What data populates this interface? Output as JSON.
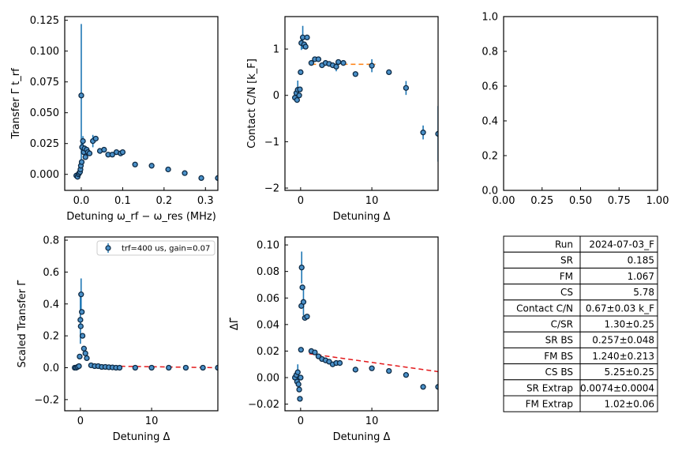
{
  "colors": {
    "marker_face": "#4a90c8",
    "marker_edge": "#0d2a45",
    "errorbar": "#1f77b4",
    "orange_fit": "#ff7f0e",
    "red_fit": "#e41a1c"
  },
  "chart_data": [
    {
      "id": "transfer",
      "type": "scatter",
      "xlabel": "Detuning ω_rf − ω_res (MHz)",
      "ylabel": "Transfer Γ t_rf",
      "xlim": [
        -0.04,
        0.33
      ],
      "ylim": [
        -0.013,
        0.128
      ],
      "xticks": [
        0,
        0.1,
        0.2,
        0.3
      ],
      "xtick_labels": [
        "0.0",
        "0.1",
        "0.2",
        "0.3"
      ],
      "yticks": [
        0,
        0.025,
        0.05,
        0.075,
        0.1,
        0.125
      ],
      "ytick_labels": [
        "0.000",
        "0.025",
        "0.050",
        "0.075",
        "0.100",
        "0.125"
      ],
      "points": [
        {
          "x": -0.012,
          "y": -0.001
        },
        {
          "x": -0.009,
          "y": -0.002
        },
        {
          "x": -0.007,
          "y": 0.0
        },
        {
          "x": -0.005,
          "y": 0.001
        },
        {
          "x": -0.003,
          "y": 0.002
        },
        {
          "x": -0.002,
          "y": 0.004
        },
        {
          "x": -0.001,
          "y": 0.007
        },
        {
          "x": 0.0,
          "y": 0.064,
          "err": 0.058
        },
        {
          "x": 0.001,
          "y": 0.01
        },
        {
          "x": 0.002,
          "y": 0.022,
          "err": 0.005
        },
        {
          "x": 0.004,
          "y": 0.027,
          "err": 0.004
        },
        {
          "x": 0.006,
          "y": 0.018
        },
        {
          "x": 0.008,
          "y": 0.021
        },
        {
          "x": 0.01,
          "y": 0.014
        },
        {
          "x": 0.013,
          "y": 0.02
        },
        {
          "x": 0.016,
          "y": 0.018
        },
        {
          "x": 0.02,
          "y": 0.017
        },
        {
          "x": 0.028,
          "y": 0.027,
          "err": 0.005
        },
        {
          "x": 0.035,
          "y": 0.029
        },
        {
          "x": 0.045,
          "y": 0.019
        },
        {
          "x": 0.055,
          "y": 0.02
        },
        {
          "x": 0.065,
          "y": 0.016
        },
        {
          "x": 0.075,
          "y": 0.016
        },
        {
          "x": 0.085,
          "y": 0.018
        },
        {
          "x": 0.095,
          "y": 0.017
        },
        {
          "x": 0.1,
          "y": 0.018
        },
        {
          "x": 0.13,
          "y": 0.008
        },
        {
          "x": 0.17,
          "y": 0.007
        },
        {
          "x": 0.21,
          "y": 0.004
        },
        {
          "x": 0.25,
          "y": 0.001
        },
        {
          "x": 0.29,
          "y": -0.003
        },
        {
          "x": 0.33,
          "y": -0.003
        }
      ]
    },
    {
      "id": "contact",
      "type": "scatter",
      "xlabel": "Detuning Δ",
      "ylabel": "Contact C/N [k_F]",
      "xlim": [
        -2.2,
        19.3
      ],
      "ylim": [
        -2.05,
        1.7
      ],
      "xticks": [
        0,
        10
      ],
      "xtick_labels": [
        "0",
        "10"
      ],
      "yticks": [
        -2,
        -1,
        0,
        1
      ],
      "ytick_labels": [
        "−2",
        "−1",
        "0",
        "1"
      ],
      "fit_line": {
        "x": [
          1.5,
          10.5
        ],
        "y": [
          0.67,
          0.67
        ],
        "style": "dashed",
        "color": "#ff7f0e"
      },
      "points": [
        {
          "x": -0.8,
          "y": -0.05
        },
        {
          "x": -0.6,
          "y": 0.05
        },
        {
          "x": -0.5,
          "y": -0.1
        },
        {
          "x": -0.4,
          "y": 0.12,
          "err": 0.2
        },
        {
          "x": -0.2,
          "y": 0.0
        },
        {
          "x": -0.1,
          "y": 0.13
        },
        {
          "x": 0.0,
          "y": 0.5
        },
        {
          "x": 0.1,
          "y": 1.13,
          "err": 0.15
        },
        {
          "x": 0.3,
          "y": 1.25,
          "err": 0.25
        },
        {
          "x": 0.5,
          "y": 1.1
        },
        {
          "x": 0.7,
          "y": 1.05
        },
        {
          "x": 0.9,
          "y": 1.25
        },
        {
          "x": 1.5,
          "y": 0.7
        },
        {
          "x": 2.0,
          "y": 0.78
        },
        {
          "x": 2.5,
          "y": 0.78
        },
        {
          "x": 3.0,
          "y": 0.65
        },
        {
          "x": 3.5,
          "y": 0.7
        },
        {
          "x": 4.0,
          "y": 0.68
        },
        {
          "x": 4.5,
          "y": 0.65
        },
        {
          "x": 5.0,
          "y": 0.62,
          "err": 0.1
        },
        {
          "x": 5.3,
          "y": 0.72
        },
        {
          "x": 6.0,
          "y": 0.7
        },
        {
          "x": 7.7,
          "y": 0.46
        },
        {
          "x": 10.0,
          "y": 0.64,
          "err": 0.14
        },
        {
          "x": 12.4,
          "y": 0.5
        },
        {
          "x": 14.8,
          "y": 0.16,
          "err": 0.15
        },
        {
          "x": 17.2,
          "y": -0.8,
          "err": 0.15
        },
        {
          "x": 19.3,
          "y": -0.83,
          "err": 0.6
        }
      ]
    },
    {
      "id": "empty",
      "type": "scatter",
      "xlim": [
        0,
        1
      ],
      "ylim": [
        0,
        1
      ],
      "xticks": [
        0,
        0.25,
        0.5,
        0.75,
        1.0
      ],
      "xtick_labels": [
        "0.00",
        "0.25",
        "0.50",
        "0.75",
        "1.00"
      ],
      "yticks": [
        0,
        0.2,
        0.4,
        0.6,
        0.8,
        1.0
      ],
      "ytick_labels": [
        "0.0",
        "0.2",
        "0.4",
        "0.6",
        "0.8",
        "1.0"
      ],
      "points": []
    },
    {
      "id": "scaled",
      "type": "scatter",
      "xlabel": "Detuning Δ",
      "ylabel": "Scaled Transfer Γ̃",
      "xlim": [
        -2.2,
        19.3
      ],
      "ylim": [
        -0.27,
        0.82
      ],
      "xticks": [
        0,
        10
      ],
      "xtick_labels": [
        "0",
        "10"
      ],
      "yticks": [
        -0.2,
        0,
        0.2,
        0.4,
        0.6,
        0.8
      ],
      "ytick_labels": [
        "−0.2",
        "0.0",
        "0.2",
        "0.4",
        "0.6",
        "0.8"
      ],
      "legend": "trf=400 us, gain=0.07",
      "fit_line": {
        "x": [
          1.2,
          19.3
        ],
        "y": [
          0.012,
          0.0
        ],
        "style": "dashed",
        "color": "#e41a1c"
      },
      "points": [
        {
          "x": -0.8,
          "y": 0.0
        },
        {
          "x": -0.6,
          "y": 0.0
        },
        {
          "x": -0.4,
          "y": 0.005
        },
        {
          "x": -0.2,
          "y": 0.01
        },
        {
          "x": -0.1,
          "y": 0.07
        },
        {
          "x": 0.0,
          "y": 0.3,
          "err": 0.15
        },
        {
          "x": 0.05,
          "y": 0.26
        },
        {
          "x": 0.1,
          "y": 0.46,
          "err": 0.1
        },
        {
          "x": 0.2,
          "y": 0.35
        },
        {
          "x": 0.3,
          "y": 0.2
        },
        {
          "x": 0.5,
          "y": 0.12
        },
        {
          "x": 0.7,
          "y": 0.09
        },
        {
          "x": 0.9,
          "y": 0.06
        },
        {
          "x": 1.5,
          "y": 0.015
        },
        {
          "x": 2.0,
          "y": 0.01
        },
        {
          "x": 2.5,
          "y": 0.01
        },
        {
          "x": 3.0,
          "y": 0.005
        },
        {
          "x": 3.5,
          "y": 0.005
        },
        {
          "x": 4.0,
          "y": 0.003
        },
        {
          "x": 4.5,
          "y": 0.002
        },
        {
          "x": 5.0,
          "y": 0.0
        },
        {
          "x": 5.5,
          "y": 0.0
        },
        {
          "x": 7.7,
          "y": 0.0
        },
        {
          "x": 10.0,
          "y": 0.0
        },
        {
          "x": 12.4,
          "y": 0.0
        },
        {
          "x": 14.8,
          "y": 0.0
        },
        {
          "x": 17.2,
          "y": 0.0
        },
        {
          "x": 19.3,
          "y": 0.0
        }
      ]
    },
    {
      "id": "deltagamma",
      "type": "scatter",
      "xlabel": "Detuning Δ",
      "ylabel": "ΔΓ̃",
      "xlim": [
        -2.2,
        19.3
      ],
      "ylim": [
        -0.025,
        0.106
      ],
      "xticks": [
        0,
        10
      ],
      "xtick_labels": [
        "0",
        "10"
      ],
      "yticks": [
        -0.02,
        0,
        0.02,
        0.04,
        0.06,
        0.08,
        0.1
      ],
      "ytick_labels": [
        "−0.02",
        "0.00",
        "0.02",
        "0.04",
        "0.06",
        "0.08",
        "0.10"
      ],
      "fit_line": {
        "x": [
          1.2,
          19.3
        ],
        "y": [
          0.018,
          0.0045
        ],
        "style": "dashed",
        "color": "#e41a1c"
      },
      "points": [
        {
          "x": -0.8,
          "y": 0.0
        },
        {
          "x": -0.6,
          "y": 0.002
        },
        {
          "x": -0.5,
          "y": -0.003
        },
        {
          "x": -0.4,
          "y": 0.004,
          "err": 0.006
        },
        {
          "x": -0.3,
          "y": -0.005
        },
        {
          "x": -0.2,
          "y": -0.009
        },
        {
          "x": -0.1,
          "y": -0.016
        },
        {
          "x": 0.0,
          "y": 0.0
        },
        {
          "x": 0.05,
          "y": 0.021
        },
        {
          "x": 0.1,
          "y": 0.054
        },
        {
          "x": 0.15,
          "y": 0.083,
          "err": 0.012
        },
        {
          "x": 0.25,
          "y": 0.068
        },
        {
          "x": 0.4,
          "y": 0.057,
          "err": 0.01
        },
        {
          "x": 0.6,
          "y": 0.045
        },
        {
          "x": 0.9,
          "y": 0.046
        },
        {
          "x": 1.5,
          "y": 0.02
        },
        {
          "x": 2.0,
          "y": 0.019
        },
        {
          "x": 2.5,
          "y": 0.016
        },
        {
          "x": 3.0,
          "y": 0.014
        },
        {
          "x": 3.5,
          "y": 0.013
        },
        {
          "x": 4.0,
          "y": 0.012
        },
        {
          "x": 4.5,
          "y": 0.01
        },
        {
          "x": 5.0,
          "y": 0.011
        },
        {
          "x": 5.5,
          "y": 0.011
        },
        {
          "x": 7.7,
          "y": 0.006
        },
        {
          "x": 10.0,
          "y": 0.007
        },
        {
          "x": 12.4,
          "y": 0.005
        },
        {
          "x": 14.8,
          "y": 0.002
        },
        {
          "x": 17.2,
          "y": -0.007
        },
        {
          "x": 19.3,
          "y": -0.007
        }
      ]
    }
  ],
  "results_table": [
    {
      "label": "Run",
      "value": "2024-07-03_F"
    },
    {
      "label": "SR",
      "value": "0.185"
    },
    {
      "label": "FM",
      "value": "1.067"
    },
    {
      "label": "CS",
      "value": "5.78"
    },
    {
      "label": "Contact C/N",
      "value": "0.67±0.03 k_F"
    },
    {
      "label": "C/SR",
      "value": "1.30±0.25"
    },
    {
      "label": "SR BS",
      "value": "0.257±0.048"
    },
    {
      "label": "FM BS",
      "value": "1.240±0.213"
    },
    {
      "label": "CS BS",
      "value": "5.25±0.25"
    },
    {
      "label": "SR Extrap",
      "value": "0.0074±0.0004"
    },
    {
      "label": "FM Extrap",
      "value": "1.02±0.06"
    }
  ]
}
